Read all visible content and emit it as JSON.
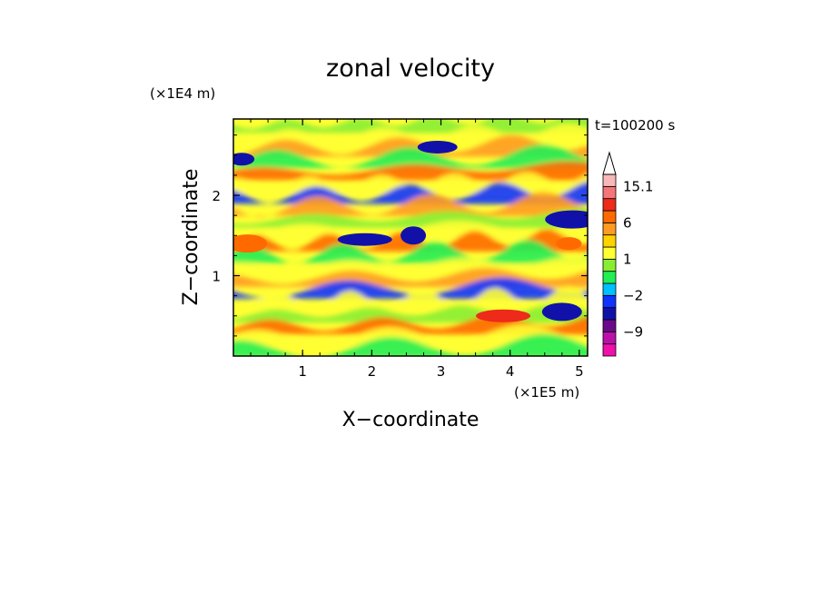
{
  "chart_data": {
    "type": "heatmap",
    "title": "zonal velocity",
    "xlabel": "X−coordinate",
    "ylabel": "Z−coordinate",
    "x_unit": "(×1E5 m)",
    "y_unit": "(×1E4 m)",
    "time_label": "t=100200 s",
    "xlim": [
      0,
      5.12
    ],
    "ylim": [
      0,
      2.95
    ],
    "x_ticks": [
      1,
      2,
      3,
      4,
      5
    ],
    "x_tick_labels": [
      "1",
      "2",
      "3",
      "4",
      "5"
    ],
    "y_ticks": [
      1,
      2
    ],
    "y_tick_labels": [
      "1",
      "2"
    ],
    "colorbar": {
      "levels": [
        -15,
        -12,
        -9,
        -6,
        -3,
        -2,
        -1,
        0,
        1,
        1.5,
        3,
        6,
        9,
        12,
        15.1
      ],
      "colors": [
        "#ee11aa",
        "#bb11aa",
        "#6a0a8a",
        "#1111aa",
        "#1133ff",
        "#00c0ff",
        "#22ee55",
        "#88ee33",
        "#ffff33",
        "#ffd200",
        "#ff9b22",
        "#ff6a00",
        "#ee2a1a",
        "#f4757a",
        "#f9b8b8"
      ],
      "tick_labels": [
        {
          "value": 15.1,
          "label": "15.1"
        },
        {
          "value": 6,
          "label": "6"
        },
        {
          "value": 1,
          "label": "1"
        },
        {
          "value": -2,
          "label": "−2"
        },
        {
          "value": -9,
          "label": "−9"
        }
      ],
      "extend": "max"
    },
    "value_range": [
      -12,
      15.1
    ],
    "field_features": [
      {
        "x": 0.12,
        "z": 2.45,
        "value": -6,
        "note": "blue band upper left"
      },
      {
        "x": 0.2,
        "z": 1.4,
        "value": 6,
        "note": "orange band left"
      },
      {
        "x": 1.9,
        "z": 1.45,
        "value": -6,
        "note": "blue band center"
      },
      {
        "x": 2.6,
        "z": 1.5,
        "value": -6,
        "note": "blue streak"
      },
      {
        "x": 2.95,
        "z": 2.6,
        "value": -6,
        "note": "blue blob top"
      },
      {
        "x": 4.9,
        "z": 1.7,
        "value": -6,
        "note": "blue blob right"
      },
      {
        "x": 4.85,
        "z": 1.4,
        "value": 6,
        "note": "orange band right"
      },
      {
        "x": 4.75,
        "z": 0.55,
        "value": -6,
        "note": "blue blob lower right"
      },
      {
        "x": 3.9,
        "z": 0.5,
        "value": 9,
        "note": "red plume near x=3.9"
      }
    ]
  }
}
